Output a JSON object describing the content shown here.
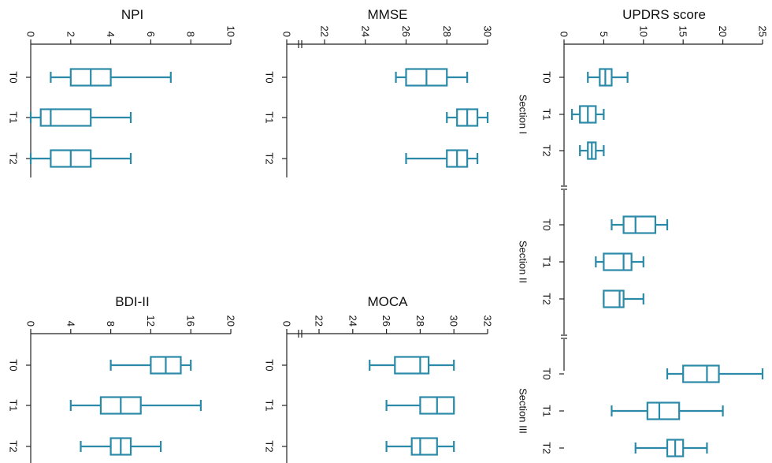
{
  "chart_data": [
    {
      "type": "box",
      "title": "UPDRS score",
      "xlim": [
        0,
        25
      ],
      "ticks": [
        "0",
        "5",
        "10",
        "15",
        "20",
        "25"
      ],
      "groups": [
        {
          "label": "Section I",
          "categories": [
            "T0",
            "T1",
            "T2"
          ],
          "boxes": [
            {
              "min": 3,
              "q1": 4.5,
              "median": 5.2,
              "q3": 6,
              "max": 8
            },
            {
              "min": 1,
              "q1": 2,
              "median": 3,
              "q3": 4,
              "max": 5
            },
            {
              "min": 2,
              "q1": 3,
              "median": 3.5,
              "q3": 4,
              "max": 5
            }
          ]
        },
        {
          "label": "Section II",
          "categories": [
            "T0",
            "T1",
            "T2"
          ],
          "boxes": [
            {
              "min": 6,
              "q1": 7.5,
              "median": 9,
              "q3": 11.5,
              "max": 13
            },
            {
              "min": 4,
              "q1": 5,
              "median": 7.5,
              "q3": 8.5,
              "max": 10
            },
            {
              "min": 5,
              "q1": 5,
              "median": 7,
              "q3": 7.5,
              "max": 10
            }
          ]
        },
        {
          "label": "Section III",
          "categories": [
            "T0",
            "T1",
            "T2"
          ],
          "boxes": [
            {
              "min": 13,
              "q1": 15,
              "median": 18,
              "q3": 19.5,
              "max": 25
            },
            {
              "min": 6,
              "q1": 10.5,
              "median": 12,
              "q3": 14.5,
              "max": 20
            },
            {
              "min": 9,
              "q1": 13,
              "median": 14,
              "q3": 15,
              "max": 18
            }
          ]
        }
      ]
    },
    {
      "type": "box",
      "title": "MMSE",
      "xlim": [
        20,
        30
      ],
      "axis_break": true,
      "ticks": [
        "0",
        "22",
        "24",
        "26",
        "28",
        "30"
      ],
      "categories": [
        "T0",
        "T1",
        "T2"
      ],
      "boxes": [
        {
          "min": 25.5,
          "q1": 26,
          "median": 27,
          "q3": 28,
          "max": 29
        },
        {
          "min": 28,
          "q1": 28.5,
          "median": 29,
          "q3": 29.5,
          "max": 30
        },
        {
          "min": 26,
          "q1": 28,
          "median": 28.5,
          "q3": 29,
          "max": 29.5
        }
      ]
    },
    {
      "type": "box",
      "title": "NPI",
      "xlim": [
        0,
        10
      ],
      "ticks": [
        "0",
        "2",
        "4",
        "6",
        "8",
        "10"
      ],
      "categories": [
        "T0",
        "T1",
        "T2"
      ],
      "boxes": [
        {
          "min": 1,
          "q1": 2,
          "median": 3,
          "q3": 4,
          "max": 7
        },
        {
          "min": 0,
          "q1": 0.5,
          "median": 1,
          "q3": 3,
          "max": 5
        },
        {
          "min": 0,
          "q1": 1,
          "median": 2,
          "q3": 3,
          "max": 5
        }
      ]
    },
    {
      "type": "box",
      "title": "MOCA",
      "xlim": [
        20,
        32
      ],
      "axis_break": true,
      "ticks": [
        "0",
        "22",
        "24",
        "26",
        "28",
        "30",
        "32"
      ],
      "categories": [
        "T0",
        "T1",
        "T2"
      ],
      "boxes": [
        {
          "min": 25,
          "q1": 26.5,
          "median": 28,
          "q3": 28.5,
          "max": 30
        },
        {
          "min": 26,
          "q1": 28,
          "median": 29,
          "q3": 30,
          "max": 30
        },
        {
          "min": 26,
          "q1": 27.5,
          "median": 28,
          "q3": 29,
          "max": 30
        }
      ]
    },
    {
      "type": "box",
      "title": "BDI-II",
      "xlim": [
        0,
        20
      ],
      "ticks": [
        "0",
        "4",
        "8",
        "12",
        "16",
        "20"
      ],
      "categories": [
        "T0",
        "T1",
        "T2"
      ],
      "boxes": [
        {
          "min": 8,
          "q1": 12,
          "median": 13.5,
          "q3": 15,
          "max": 16
        },
        {
          "min": 4,
          "q1": 7,
          "median": 9,
          "q3": 11,
          "max": 17
        },
        {
          "min": 5,
          "q1": 8,
          "median": 9,
          "q3": 10,
          "max": 13
        }
      ]
    }
  ]
}
